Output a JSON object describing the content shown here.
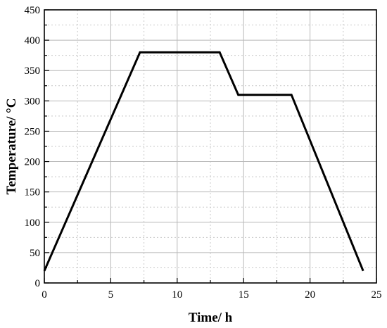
{
  "chart_data": {
    "type": "line",
    "title": "",
    "xlabel": "Time/ h",
    "ylabel": "Temperature/ °C",
    "xlim": [
      0,
      25
    ],
    "ylim": [
      0,
      450
    ],
    "xticks": [
      0,
      5,
      10,
      15,
      20,
      25
    ],
    "yticks": [
      0,
      50,
      100,
      150,
      200,
      250,
      300,
      350,
      400,
      450
    ],
    "grid": true,
    "minor_grid": true,
    "legend": "none",
    "series": [
      {
        "color": "#000000",
        "x": [
          0,
          7.2,
          13.2,
          14.6,
          18.6,
          24.0
        ],
        "y": [
          20,
          380,
          380,
          310,
          310,
          20
        ]
      }
    ]
  }
}
